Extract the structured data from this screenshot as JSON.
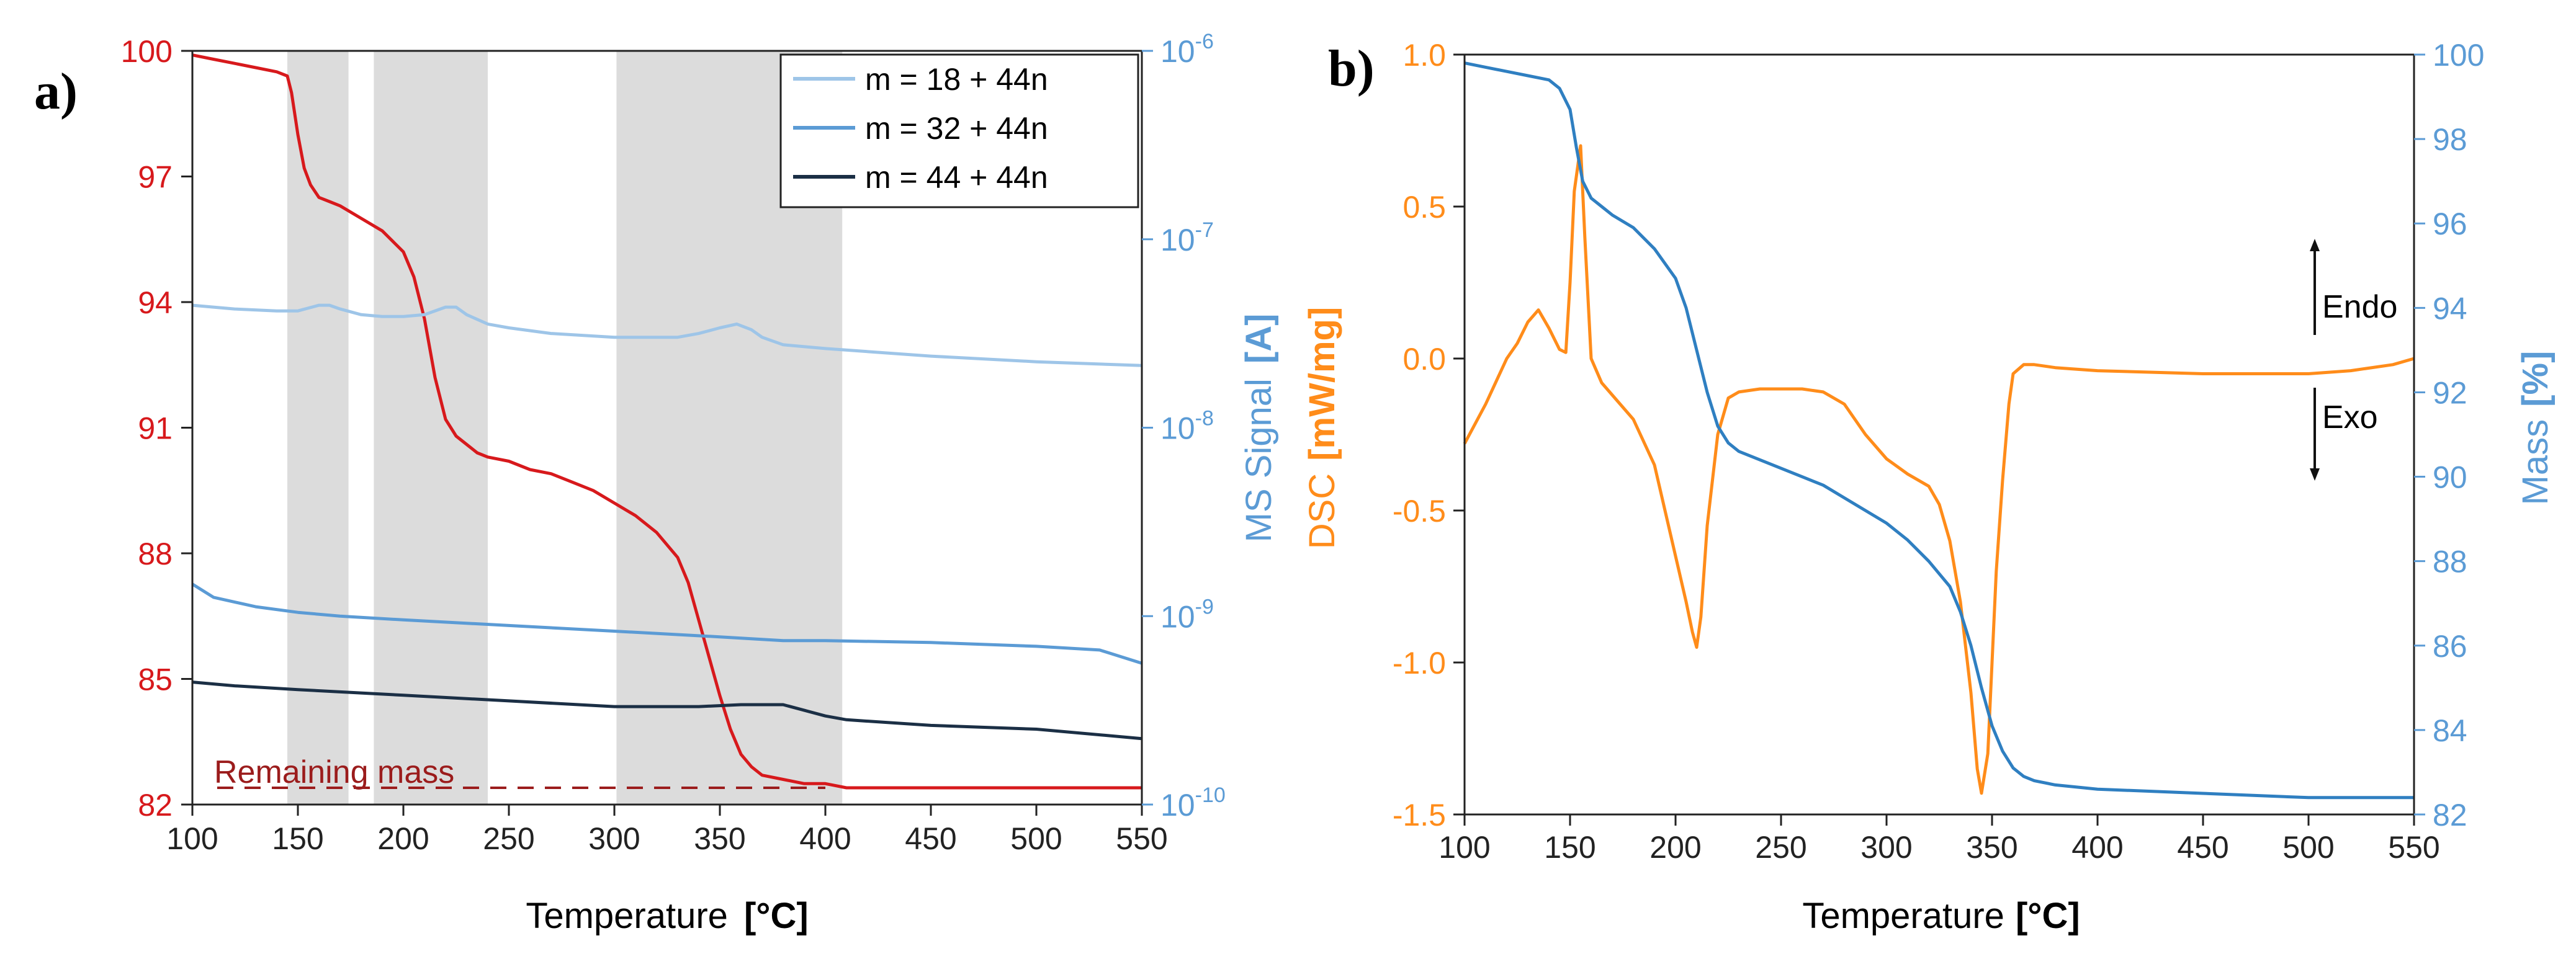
{
  "colors": {
    "mass_red": "#d7191c",
    "remaining_dark_red": "#9b1c1c",
    "ms_axis_blue": "#5b9bd5",
    "ms_18": "#9ec5e8",
    "ms_32": "#5b9bd5",
    "ms_44": "#1b2f45",
    "dsc_orange": "#ff8c1a",
    "mass_blue": "#2f7fc1",
    "shade": "#dcdcdc"
  },
  "chart_data": [
    {
      "type": "line",
      "panel_label": "a)",
      "xlabel": "Temperature",
      "xlabel_unit": "[°C]",
      "xlim": [
        100,
        550
      ],
      "x_ticks": [
        "100",
        "150",
        "200",
        "250",
        "300",
        "350",
        "400",
        "450",
        "500",
        "550"
      ],
      "x_tick_values": [
        100,
        150,
        200,
        250,
        300,
        350,
        400,
        450,
        500,
        550
      ],
      "y_left": {
        "label": "",
        "lim": [
          82,
          100
        ],
        "ticks": [
          "82",
          "85",
          "88",
          "91",
          "94",
          "97",
          "100"
        ],
        "tick_values": [
          82,
          85,
          88,
          91,
          94,
          97,
          100
        ]
      },
      "y_right": {
        "label": "MS Signal",
        "label_unit": "[A]",
        "scale": "log",
        "lim_exp": [
          -10,
          -6
        ],
        "ticks": [
          {
            "base": "10",
            "exp": "-10",
            "v": -10
          },
          {
            "base": "10",
            "exp": "-9",
            "v": -9
          },
          {
            "base": "10",
            "exp": "-8",
            "v": -8
          },
          {
            "base": "10",
            "exp": "-7",
            "v": -7
          },
          {
            "base": "10",
            "exp": "-6",
            "v": -6
          }
        ]
      },
      "shaded_ranges": [
        [
          145,
          174
        ],
        [
          186,
          240
        ],
        [
          301,
          408
        ]
      ],
      "legend": [
        "m = 18 + 44n",
        "m = 32 + 44n",
        "m = 44 + 44n"
      ],
      "annotation": "Remaining mass",
      "remaining_mass_value": 82.4,
      "series": [
        {
          "name": "Mass",
          "axis": "left",
          "color_key": "mass_red",
          "x": [
            100,
            110,
            120,
            130,
            140,
            145,
            147,
            150,
            153,
            156,
            160,
            165,
            170,
            180,
            190,
            200,
            205,
            210,
            215,
            220,
            225,
            230,
            235,
            240,
            250,
            260,
            270,
            280,
            290,
            300,
            310,
            320,
            330,
            335,
            340,
            345,
            350,
            355,
            360,
            365,
            370,
            380,
            390,
            400,
            410,
            420,
            450,
            500,
            550
          ],
          "y": [
            99.9,
            99.8,
            99.7,
            99.6,
            99.5,
            99.4,
            99.0,
            98.0,
            97.2,
            96.8,
            96.5,
            96.4,
            96.3,
            96.0,
            95.7,
            95.2,
            94.6,
            93.6,
            92.2,
            91.2,
            90.8,
            90.6,
            90.4,
            90.3,
            90.2,
            90.0,
            89.9,
            89.7,
            89.5,
            89.2,
            88.9,
            88.5,
            87.9,
            87.3,
            86.4,
            85.5,
            84.6,
            83.8,
            83.2,
            82.9,
            82.7,
            82.6,
            82.5,
            82.5,
            82.4,
            82.4,
            82.4,
            82.4,
            82.4
          ]
        },
        {
          "name": "m = 18 + 44n",
          "axis": "right_log",
          "color_key": "ms_18",
          "x": [
            100,
            120,
            140,
            150,
            160,
            165,
            170,
            180,
            190,
            200,
            210,
            220,
            225,
            230,
            240,
            250,
            270,
            300,
            330,
            340,
            350,
            358,
            365,
            370,
            380,
            400,
            450,
            500,
            550
          ],
          "y": [
            -7.35,
            -7.37,
            -7.38,
            -7.38,
            -7.35,
            -7.35,
            -7.37,
            -7.4,
            -7.41,
            -7.41,
            -7.4,
            -7.36,
            -7.36,
            -7.4,
            -7.45,
            -7.47,
            -7.5,
            -7.52,
            -7.52,
            -7.5,
            -7.47,
            -7.45,
            -7.48,
            -7.52,
            -7.56,
            -7.58,
            -7.62,
            -7.65,
            -7.67
          ]
        },
        {
          "name": "m = 32 + 44n",
          "axis": "right_log",
          "color_key": "ms_32",
          "x": [
            100,
            110,
            130,
            150,
            170,
            200,
            250,
            300,
            350,
            380,
            400,
            450,
            500,
            530,
            550
          ],
          "y": [
            -8.83,
            -8.9,
            -8.95,
            -8.98,
            -9.0,
            -9.02,
            -9.05,
            -9.08,
            -9.11,
            -9.13,
            -9.13,
            -9.14,
            -9.16,
            -9.18,
            -9.25
          ]
        },
        {
          "name": "m = 44 + 44n",
          "axis": "right_log",
          "color_key": "ms_44",
          "x": [
            100,
            120,
            150,
            200,
            250,
            300,
            340,
            360,
            380,
            390,
            400,
            410,
            450,
            500,
            550
          ],
          "y": [
            -9.35,
            -9.37,
            -9.39,
            -9.42,
            -9.45,
            -9.48,
            -9.48,
            -9.47,
            -9.47,
            -9.5,
            -9.53,
            -9.55,
            -9.58,
            -9.6,
            -9.65
          ]
        }
      ]
    },
    {
      "type": "line",
      "panel_label": "b)",
      "xlabel": "Temperature",
      "xlabel_unit": "[°C]",
      "xlim": [
        100,
        550
      ],
      "x_ticks": [
        "100",
        "150",
        "200",
        "250",
        "300",
        "350",
        "400",
        "450",
        "500",
        "550"
      ],
      "x_tick_values": [
        100,
        150,
        200,
        250,
        300,
        350,
        400,
        450,
        500,
        550
      ],
      "y_left": {
        "label": "DSC",
        "label_unit": "[mW/mg]",
        "lim": [
          -1.5,
          1.0
        ],
        "ticks": [
          "-1.5",
          "-1.0",
          "-0.5",
          "0.0",
          "0.5",
          "1.0"
        ],
        "tick_values": [
          -1.5,
          -1.0,
          -0.5,
          0.0,
          0.5,
          1.0
        ]
      },
      "y_right": {
        "label": "Mass",
        "label_unit": "[%]",
        "lim": [
          82,
          100
        ],
        "ticks": [
          "82",
          "84",
          "86",
          "88",
          "90",
          "92",
          "94",
          "96",
          "98",
          "100"
        ],
        "tick_values": [
          82,
          84,
          86,
          88,
          90,
          92,
          94,
          96,
          98,
          100
        ]
      },
      "annotations": [
        "Endo",
        "Exo"
      ],
      "series": [
        {
          "name": "DSC",
          "axis": "left",
          "color_key": "dsc_orange",
          "x": [
            100,
            110,
            120,
            125,
            130,
            135,
            140,
            145,
            148,
            150,
            152,
            155,
            157,
            160,
            165,
            170,
            180,
            190,
            195,
            200,
            205,
            208,
            210,
            212,
            215,
            220,
            225,
            230,
            240,
            250,
            260,
            270,
            280,
            290,
            300,
            310,
            320,
            325,
            330,
            335,
            340,
            343,
            345,
            348,
            350,
            352,
            355,
            358,
            360,
            365,
            370,
            380,
            400,
            450,
            500,
            520,
            540,
            550
          ],
          "y": [
            -0.28,
            -0.15,
            0.0,
            0.05,
            0.12,
            0.16,
            0.1,
            0.03,
            0.02,
            0.25,
            0.55,
            0.7,
            0.4,
            0.0,
            -0.08,
            -0.12,
            -0.2,
            -0.35,
            -0.5,
            -0.65,
            -0.8,
            -0.9,
            -0.95,
            -0.85,
            -0.55,
            -0.25,
            -0.13,
            -0.11,
            -0.1,
            -0.1,
            -0.1,
            -0.11,
            -0.15,
            -0.25,
            -0.33,
            -0.38,
            -0.42,
            -0.48,
            -0.6,
            -0.8,
            -1.1,
            -1.35,
            -1.43,
            -1.3,
            -1.0,
            -0.7,
            -0.4,
            -0.15,
            -0.05,
            -0.02,
            -0.02,
            -0.03,
            -0.04,
            -0.05,
            -0.05,
            -0.04,
            -0.02,
            0.0
          ]
        },
        {
          "name": "Mass",
          "axis": "right",
          "color_key": "mass_blue",
          "x": [
            100,
            110,
            120,
            130,
            140,
            145,
            150,
            153,
            156,
            160,
            165,
            170,
            180,
            190,
            200,
            205,
            210,
            215,
            220,
            225,
            230,
            240,
            250,
            260,
            270,
            280,
            290,
            300,
            310,
            320,
            330,
            335,
            340,
            345,
            350,
            355,
            360,
            365,
            370,
            380,
            400,
            450,
            500,
            550
          ],
          "y": [
            99.8,
            99.7,
            99.6,
            99.5,
            99.4,
            99.2,
            98.7,
            97.8,
            97.0,
            96.6,
            96.4,
            96.2,
            95.9,
            95.4,
            94.7,
            94.0,
            93.0,
            92.0,
            91.2,
            90.8,
            90.6,
            90.4,
            90.2,
            90.0,
            89.8,
            89.5,
            89.2,
            88.9,
            88.5,
            88.0,
            87.4,
            86.8,
            86.0,
            85.0,
            84.1,
            83.5,
            83.1,
            82.9,
            82.8,
            82.7,
            82.6,
            82.5,
            82.4,
            82.4
          ]
        }
      ]
    }
  ]
}
